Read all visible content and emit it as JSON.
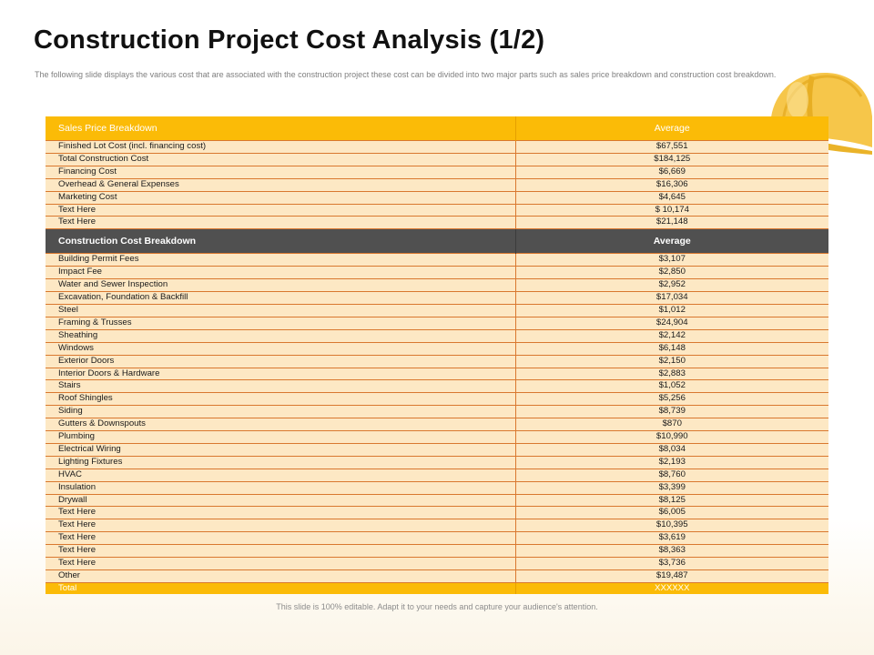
{
  "slide": {
    "title": "Construction Project Cost Analysis (1/2)",
    "subtitle": "The following slide displays the various cost that are associated with the construction project these cost can be divided into two major parts such as sales price breakdown and construction cost breakdown.",
    "footer": "This slide is 100% editable. Adapt it to your needs and capture your audience's attention."
  },
  "colors": {
    "accent": "#fbbb07",
    "row_fill": "#fde8c4",
    "dark_header": "#505050",
    "border": "#d9782f"
  },
  "table": {
    "sales": {
      "header": "Sales Price Breakdown",
      "value_header": "Average",
      "rows": [
        {
          "label": "Finished Lot Cost (incl. financing cost)",
          "value": "$67,551"
        },
        {
          "label": "Total Construction Cost",
          "value": "$184,125"
        },
        {
          "label": "Financing Cost",
          "value": "$6,669"
        },
        {
          "label": "Overhead & General Expenses",
          "value": "$16,306"
        },
        {
          "label": "Marketing Cost",
          "value": "$4,645"
        },
        {
          "label": "Text Here",
          "value": "$ 10,174"
        },
        {
          "label": "Text Here",
          "value": "$21,148"
        }
      ]
    },
    "construction": {
      "header": "Construction Cost Breakdown",
      "value_header": "Average",
      "rows": [
        {
          "label": "Building Permit Fees",
          "value": "$3,107"
        },
        {
          "label": "Impact Fee",
          "value": "$2,850"
        },
        {
          "label": "Water and Sewer Inspection",
          "value": "$2,952"
        },
        {
          "label": "Excavation, Foundation & Backfill",
          "value": "$17,034"
        },
        {
          "label": "Steel",
          "value": "$1,012"
        },
        {
          "label": "Framing & Trusses",
          "value": "$24,904"
        },
        {
          "label": "Sheathing",
          "value": "$2,142"
        },
        {
          "label": "Windows",
          "value": "$6,148"
        },
        {
          "label": "Exterior Doors",
          "value": "$2,150"
        },
        {
          "label": "Interior Doors & Hardware",
          "value": "$2,883"
        },
        {
          "label": "Stairs",
          "value": "$1,052"
        },
        {
          "label": "Roof Shingles",
          "value": "$5,256"
        },
        {
          "label": "Siding",
          "value": "$8,739"
        },
        {
          "label": "Gutters & Downspouts",
          "value": "$870"
        },
        {
          "label": "Plumbing",
          "value": "$10,990"
        },
        {
          "label": "Electrical Wiring",
          "value": "$8,034"
        },
        {
          "label": "Lighting Fixtures",
          "value": "$2,193"
        },
        {
          "label": "HVAC",
          "value": "$8,760"
        },
        {
          "label": "Insulation",
          "value": "$3,399"
        },
        {
          "label": "Drywall",
          "value": "$8,125"
        },
        {
          "label": "Text Here",
          "value": "$6,005"
        },
        {
          "label": "Text Here",
          "value": "$10,395"
        },
        {
          "label": "Text Here",
          "value": "$3,619"
        },
        {
          "label": "Text Here",
          "value": "$8,363"
        },
        {
          "label": "Text Here",
          "value": "$3,736"
        },
        {
          "label": "Other",
          "value": "$19,487"
        }
      ]
    },
    "total": {
      "label": "Total",
      "value": "XXXXXX"
    }
  },
  "icons": {
    "decoration": "hard-hat-icon"
  }
}
